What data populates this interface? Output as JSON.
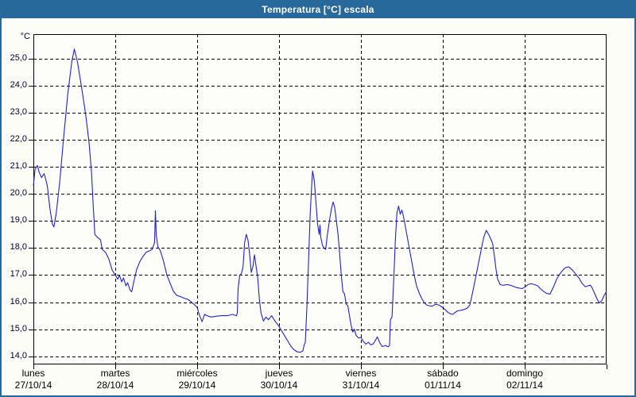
{
  "window": {
    "title": "Temperatura [°C] escala"
  },
  "colors": {
    "titlebar": "#27699b",
    "window_border": "#27699b",
    "background": "#fcfdf6",
    "plot_background": "#fdfefa",
    "grid": "#000000",
    "axis_text": "#000033",
    "series_line": "#2222cc"
  },
  "chart_data": {
    "type": "line",
    "title": "Temperatura [°C] escala",
    "ylabel": "°C",
    "xlabel": "",
    "grid": true,
    "legend": false,
    "ylim": [
      13.7,
      25.9
    ],
    "xlim_days": [
      0,
      7
    ],
    "y_ticks": [
      25,
      24,
      23,
      22,
      21,
      20,
      19,
      18,
      17,
      16,
      15,
      14
    ],
    "y_tick_labels": [
      "25,0",
      "24,0",
      "23,0",
      "22,0",
      "21,0",
      "20,0",
      "19,0",
      "18,0",
      "17,0",
      "16,0",
      "15,0",
      "14,0"
    ],
    "x_days": [
      {
        "name": "lunes",
        "date": "27/10/14"
      },
      {
        "name": "martes",
        "date": "28/10/14"
      },
      {
        "name": "miércoles",
        "date": "29/10/14"
      },
      {
        "name": "jueves",
        "date": "30/10/14"
      },
      {
        "name": "viernes",
        "date": "31/10/14"
      },
      {
        "name": "sábado",
        "date": "01/11/14"
      },
      {
        "name": "domingo",
        "date": "02/11/14"
      }
    ],
    "series": [
      {
        "name": "Temperatura [°C]",
        "color": "#2222cc",
        "points": [
          [
            0,
            20.3
          ],
          [
            0.02,
            20.9
          ],
          [
            0.05,
            21.05
          ],
          [
            0.07,
            20.8
          ],
          [
            0.1,
            20.6
          ],
          [
            0.13,
            20.75
          ],
          [
            0.15,
            20.55
          ],
          [
            0.17,
            20.3
          ],
          [
            0.2,
            19.5
          ],
          [
            0.23,
            18.9
          ],
          [
            0.25,
            18.78
          ],
          [
            0.28,
            19.3
          ],
          [
            0.32,
            20.4
          ],
          [
            0.37,
            22.1
          ],
          [
            0.42,
            23.7
          ],
          [
            0.47,
            24.9
          ],
          [
            0.5,
            25.35
          ],
          [
            0.54,
            24.85
          ],
          [
            0.59,
            23.9
          ],
          [
            0.64,
            22.9
          ],
          [
            0.68,
            21.9
          ],
          [
            0.71,
            20.8
          ],
          [
            0.73,
            19.6
          ],
          [
            0.75,
            18.5
          ],
          [
            0.78,
            18.4
          ],
          [
            0.82,
            18.3
          ],
          [
            0.84,
            17.95
          ],
          [
            0.88,
            17.85
          ],
          [
            0.92,
            17.6
          ],
          [
            0.96,
            17.2
          ],
          [
            1,
            17
          ],
          [
            1.03,
            16.85
          ],
          [
            1.05,
            17
          ],
          [
            1.08,
            16.75
          ],
          [
            1.1,
            16.9
          ],
          [
            1.13,
            16.6
          ],
          [
            1.15,
            16.72
          ],
          [
            1.18,
            16.45
          ],
          [
            1.2,
            16.38
          ],
          [
            1.23,
            16.8
          ],
          [
            1.26,
            17.2
          ],
          [
            1.3,
            17.5
          ],
          [
            1.34,
            17.7
          ],
          [
            1.38,
            17.85
          ],
          [
            1.42,
            17.9
          ],
          [
            1.45,
            17.95
          ],
          [
            1.48,
            18.2
          ],
          [
            1.49,
            19.38
          ],
          [
            1.5,
            18.5
          ],
          [
            1.52,
            18.05
          ],
          [
            1.55,
            17.9
          ],
          [
            1.59,
            17.5
          ],
          [
            1.63,
            17
          ],
          [
            1.67,
            16.7
          ],
          [
            1.71,
            16.4
          ],
          [
            1.75,
            16.25
          ],
          [
            1.8,
            16.2
          ],
          [
            1.84,
            16.15
          ],
          [
            1.89,
            16.1
          ],
          [
            1.93,
            16
          ],
          [
            1.97,
            15.9
          ],
          [
            2,
            15.8
          ],
          [
            2.03,
            15.5
          ],
          [
            2.06,
            15.28
          ],
          [
            2.09,
            15.55
          ],
          [
            2.12,
            15.5
          ],
          [
            2.17,
            15.45
          ],
          [
            2.23,
            15.48
          ],
          [
            2.3,
            15.5
          ],
          [
            2.37,
            15.5
          ],
          [
            2.43,
            15.55
          ],
          [
            2.48,
            15.5
          ],
          [
            2.49,
            15.6
          ],
          [
            2.5,
            16.5
          ],
          [
            2.52,
            17
          ],
          [
            2.54,
            17.05
          ],
          [
            2.56,
            17.3
          ],
          [
            2.58,
            18.2
          ],
          [
            2.6,
            18.5
          ],
          [
            2.62,
            18.3
          ],
          [
            2.64,
            17.8
          ],
          [
            2.66,
            17.1
          ],
          [
            2.68,
            17.3
          ],
          [
            2.7,
            17.75
          ],
          [
            2.72,
            17.3
          ],
          [
            2.74,
            16.9
          ],
          [
            2.76,
            16.1
          ],
          [
            2.78,
            15.6
          ],
          [
            2.81,
            15.3
          ],
          [
            2.84,
            15.45
          ],
          [
            2.87,
            15.35
          ],
          [
            2.91,
            15.5
          ],
          [
            2.95,
            15.3
          ],
          [
            2.99,
            15.15
          ],
          [
            3.03,
            14.95
          ],
          [
            3.07,
            14.75
          ],
          [
            3.11,
            14.55
          ],
          [
            3.15,
            14.35
          ],
          [
            3.18,
            14.25
          ],
          [
            3.22,
            14.17
          ],
          [
            3.26,
            14.15
          ],
          [
            3.29,
            14.2
          ],
          [
            3.31,
            14.45
          ],
          [
            3.32,
            14.5
          ],
          [
            3.34,
            15.8
          ],
          [
            3.36,
            17.5
          ],
          [
            3.38,
            19.2
          ],
          [
            3.4,
            20.4
          ],
          [
            3.41,
            20.85
          ],
          [
            3.43,
            20.5
          ],
          [
            3.45,
            19.7
          ],
          [
            3.47,
            18.9
          ],
          [
            3.49,
            18.5
          ],
          [
            3.5,
            18.85
          ],
          [
            3.51,
            18.4
          ],
          [
            3.53,
            18.1
          ],
          [
            3.55,
            18
          ],
          [
            3.57,
            17.95
          ],
          [
            3.59,
            18.5
          ],
          [
            3.62,
            19.1
          ],
          [
            3.64,
            19.45
          ],
          [
            3.66,
            19.7
          ],
          [
            3.68,
            19.5
          ],
          [
            3.7,
            19
          ],
          [
            3.72,
            18.5
          ],
          [
            3.74,
            17.8
          ],
          [
            3.76,
            17
          ],
          [
            3.78,
            16.4
          ],
          [
            3.8,
            16.3
          ],
          [
            3.82,
            15.92
          ],
          [
            3.84,
            15.88
          ],
          [
            3.86,
            15.5
          ],
          [
            3.88,
            15.15
          ],
          [
            3.9,
            14.9
          ],
          [
            3.92,
            15
          ],
          [
            3.94,
            14.78
          ],
          [
            3.97,
            14.68
          ],
          [
            4,
            14.7
          ],
          [
            4.03,
            14.55
          ],
          [
            4.06,
            14.45
          ],
          [
            4.09,
            14.52
          ],
          [
            4.12,
            14.42
          ],
          [
            4.15,
            14.46
          ],
          [
            4.17,
            14.55
          ],
          [
            4.2,
            14.72
          ],
          [
            4.23,
            14.5
          ],
          [
            4.26,
            14.36
          ],
          [
            4.3,
            14.4
          ],
          [
            4.33,
            14.35
          ],
          [
            4.35,
            14.4
          ],
          [
            4.36,
            15.35
          ],
          [
            4.38,
            15.45
          ],
          [
            4.4,
            16.8
          ],
          [
            4.42,
            18.3
          ],
          [
            4.44,
            19.3
          ],
          [
            4.46,
            19.55
          ],
          [
            4.48,
            19.25
          ],
          [
            4.5,
            19.4
          ],
          [
            4.51,
            19.3
          ],
          [
            4.53,
            19
          ],
          [
            4.56,
            18.5
          ],
          [
            4.59,
            18
          ],
          [
            4.62,
            17.5
          ],
          [
            4.65,
            17
          ],
          [
            4.68,
            16.6
          ],
          [
            4.71,
            16.35
          ],
          [
            4.74,
            16.15
          ],
          [
            4.77,
            16
          ],
          [
            4.8,
            15.9
          ],
          [
            4.83,
            15.87
          ],
          [
            4.87,
            15.85
          ],
          [
            4.91,
            15.92
          ],
          [
            4.95,
            15.9
          ],
          [
            5,
            15.8
          ],
          [
            5.03,
            15.72
          ],
          [
            5.06,
            15.63
          ],
          [
            5.09,
            15.57
          ],
          [
            5.12,
            15.55
          ],
          [
            5.15,
            15.62
          ],
          [
            5.18,
            15.68
          ],
          [
            5.22,
            15.7
          ],
          [
            5.26,
            15.73
          ],
          [
            5.3,
            15.78
          ],
          [
            5.33,
            15.9
          ],
          [
            5.36,
            16.3
          ],
          [
            5.4,
            16.9
          ],
          [
            5.44,
            17.5
          ],
          [
            5.48,
            18.1
          ],
          [
            5.5,
            18.4
          ],
          [
            5.53,
            18.65
          ],
          [
            5.56,
            18.5
          ],
          [
            5.59,
            18.3
          ],
          [
            5.61,
            18.15
          ],
          [
            5.63,
            17.7
          ],
          [
            5.65,
            17.2
          ],
          [
            5.67,
            16.85
          ],
          [
            5.7,
            16.65
          ],
          [
            5.74,
            16.62
          ],
          [
            5.78,
            16.65
          ],
          [
            5.82,
            16.63
          ],
          [
            5.85,
            16.6
          ],
          [
            5.89,
            16.55
          ],
          [
            5.93,
            16.52
          ],
          [
            5.97,
            16.5
          ],
          [
            6,
            16.55
          ],
          [
            6.04,
            16.65
          ],
          [
            6.08,
            16.68
          ],
          [
            6.12,
            16.65
          ],
          [
            6.16,
            16.6
          ],
          [
            6.19,
            16.5
          ],
          [
            6.23,
            16.4
          ],
          [
            6.27,
            16.32
          ],
          [
            6.31,
            16.3
          ],
          [
            6.35,
            16.55
          ],
          [
            6.39,
            16.85
          ],
          [
            6.43,
            17.05
          ],
          [
            6.47,
            17.2
          ],
          [
            6.5,
            17.28
          ],
          [
            6.54,
            17.3
          ],
          [
            6.58,
            17.2
          ],
          [
            6.62,
            17.05
          ],
          [
            6.66,
            16.9
          ],
          [
            6.7,
            16.7
          ],
          [
            6.74,
            16.57
          ],
          [
            6.77,
            16.6
          ],
          [
            6.8,
            16.63
          ],
          [
            6.82,
            16.55
          ],
          [
            6.85,
            16.35
          ],
          [
            6.88,
            16.15
          ],
          [
            6.91,
            15.97
          ],
          [
            6.94,
            16.05
          ],
          [
            6.97,
            16.25
          ],
          [
            7,
            16.4
          ]
        ]
      }
    ]
  }
}
